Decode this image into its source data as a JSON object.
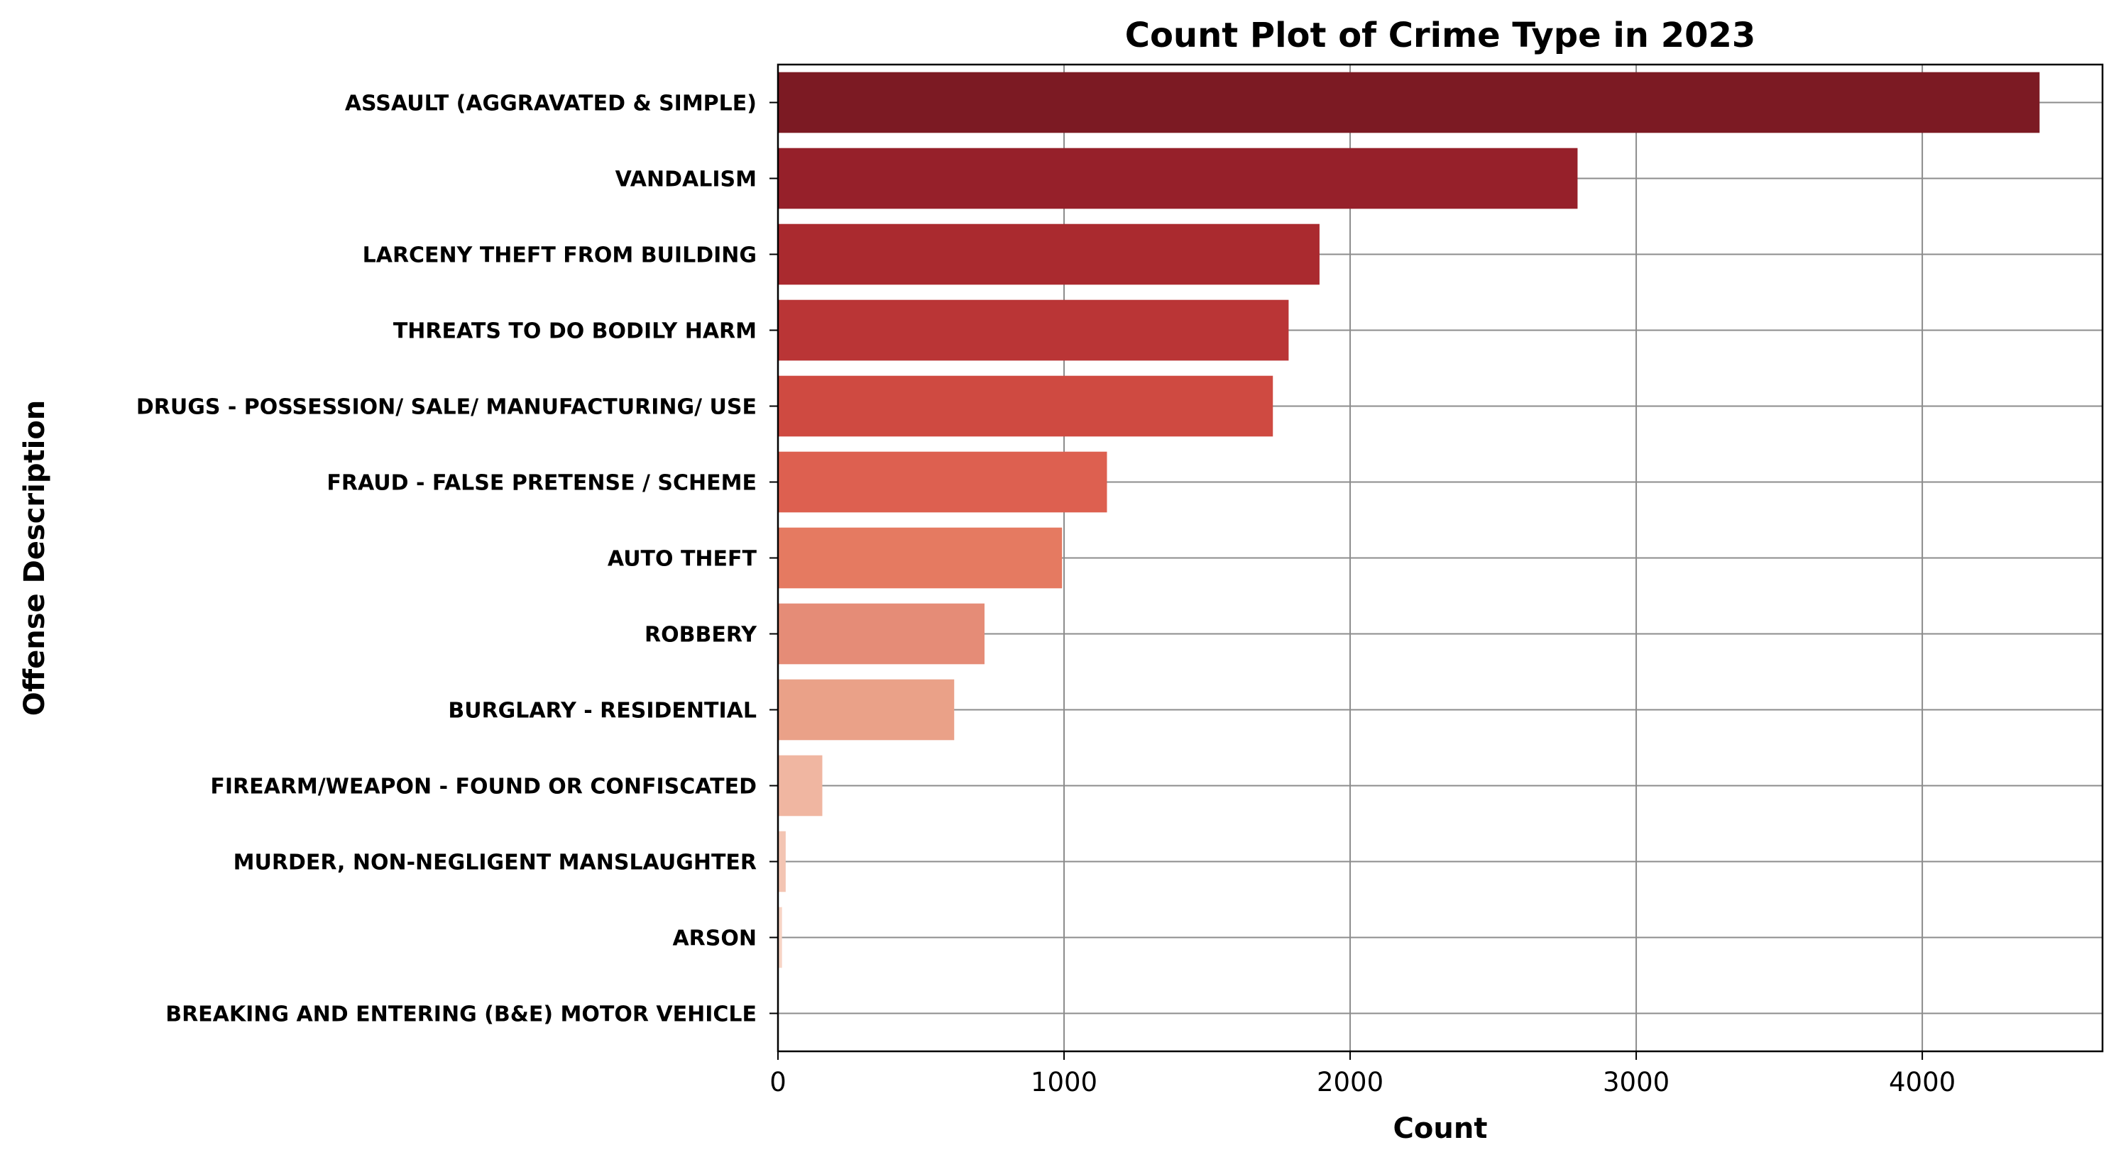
{
  "chart_data": {
    "type": "bar",
    "orientation": "horizontal",
    "title": "Count Plot of Crime Type in 2023",
    "xlabel": "Count",
    "ylabel": "Offense Description",
    "xlim": [
      0,
      4630
    ],
    "xticks": [
      0,
      1000,
      2000,
      3000,
      4000
    ],
    "xtick_labels": [
      "0",
      "1000",
      "2000",
      "3000",
      "4000"
    ],
    "grid": true,
    "categories": [
      "ASSAULT (AGGRAVATED & SIMPLE)",
      "VANDALISM",
      "LARCENY THEFT FROM BUILDING",
      "THREATS TO DO BODILY HARM",
      "DRUGS - POSSESSION/ SALE/ MANUFACTURING/ USE",
      "FRAUD - FALSE PRETENSE / SCHEME",
      "AUTO THEFT",
      "ROBBERY",
      "BURGLARY - RESIDENTIAL",
      "FIREARM/WEAPON - FOUND OR CONFISCATED",
      "MURDER, NON-NEGLIGENT MANSLAUGHTER",
      "ARSON",
      "BREAKING AND ENTERING (B&E) MOTOR VEHICLE"
    ],
    "values": [
      4410,
      2795,
      1893,
      1785,
      1730,
      1150,
      993,
      722,
      616,
      155,
      27,
      14,
      3
    ],
    "colors": [
      "#7c1a23",
      "#96202a",
      "#aa2a2f",
      "#ba3536",
      "#cf4a41",
      "#dd6050",
      "#e57a61",
      "#e58c77",
      "#eaa188",
      "#f0b6a1",
      "#f3c5b3",
      "#f6d3c4",
      "#f9e1d6"
    ]
  }
}
